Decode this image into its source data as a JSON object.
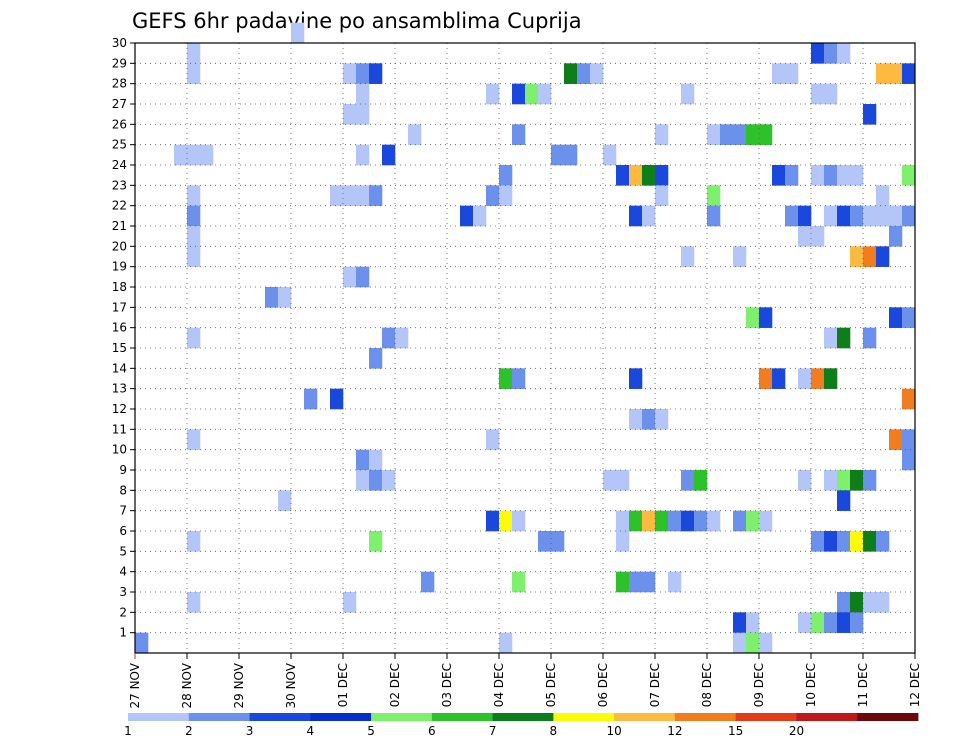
{
  "chart_data": {
    "type": "heatmap",
    "title": "GEFS 6hr padavine po ansamblima Cuprija",
    "x_ticks": [
      "27 NOV",
      "28 NOV",
      "29 NOV",
      "30 NOV",
      "01 DEC",
      "02 DEC",
      "03 DEC",
      "04 DEC",
      "05 DEC",
      "06 DEC",
      "07 DEC",
      "08 DEC",
      "09 DEC",
      "10 DEC",
      "11 DEC",
      "12 DEC"
    ],
    "y_ticks": [
      1,
      2,
      3,
      4,
      5,
      6,
      7,
      8,
      9,
      10,
      11,
      12,
      13,
      14,
      15,
      16,
      17,
      18,
      19,
      20,
      21,
      22,
      23,
      24,
      25,
      26,
      27,
      28,
      29,
      30
    ],
    "xlim_steps": [
      0,
      60
    ],
    "steps_per_day": 4,
    "ylim": [
      0,
      30
    ],
    "grid": true,
    "colorbar": {
      "labels": [
        "1",
        "2",
        "3",
        "4",
        "5",
        "6",
        "7",
        "8",
        "10",
        "12",
        "15",
        "20"
      ],
      "colors": [
        "#b3c6f7",
        "#6b91ec",
        "#1a48dc",
        "#0530c8",
        "#7ef06e",
        "#2ec22a",
        "#0e7e1a",
        "#fcfc0a",
        "#fcba40",
        "#f27d1e",
        "#e33c18",
        "#c01818",
        "#6e0808"
      ]
    },
    "bins": [
      "#b3c6f7",
      "#6b91ec",
      "#1a48dc",
      "#7ef06e",
      "#2ec22a",
      "#0e7e1a",
      "#fcfc0a",
      "#fcba40",
      "#f27d1e",
      "#e33c18",
      "#6e0808"
    ],
    "cells": [
      [
        0,
        0,
        2,
        30,
        1
      ],
      [
        12,
        30,
        1
      ],
      [
        4,
        29,
        1
      ],
      [
        52,
        29,
        3
      ],
      [
        53,
        29,
        2
      ],
      [
        54,
        29,
        1
      ],
      [
        4,
        28,
        1
      ],
      [
        16,
        28,
        1
      ],
      [
        17,
        28,
        2
      ],
      [
        18,
        28,
        3
      ],
      [
        33,
        28,
        6
      ],
      [
        34,
        28,
        2
      ],
      [
        35,
        28,
        1
      ],
      [
        49,
        28,
        1
      ],
      [
        50,
        28,
        1
      ],
      [
        57,
        28,
        8
      ],
      [
        58,
        28,
        8
      ],
      [
        59,
        28,
        3
      ],
      [
        17,
        27,
        1
      ],
      [
        27,
        27,
        1
      ],
      [
        29,
        27,
        3
      ],
      [
        30,
        27,
        4
      ],
      [
        31,
        27,
        1
      ],
      [
        42,
        27,
        1
      ],
      [
        52,
        27,
        1
      ],
      [
        53,
        27,
        1
      ],
      [
        16,
        26,
        1
      ],
      [
        17,
        26,
        1
      ],
      [
        56,
        26,
        3
      ],
      [
        21,
        25,
        1
      ],
      [
        29,
        25,
        2
      ],
      [
        40,
        25,
        1
      ],
      [
        44,
        25,
        1
      ],
      [
        45,
        25,
        2
      ],
      [
        46,
        25,
        2
      ],
      [
        47,
        25,
        5
      ],
      [
        48,
        25,
        5
      ],
      [
        3,
        24,
        1
      ],
      [
        4,
        24,
        1
      ],
      [
        5,
        24,
        1
      ],
      [
        17,
        24,
        1
      ],
      [
        19,
        24,
        3
      ],
      [
        32,
        24,
        2
      ],
      [
        33,
        24,
        2
      ],
      [
        36,
        24,
        1
      ],
      [
        28,
        23,
        2
      ],
      [
        37,
        23,
        3
      ],
      [
        38,
        23,
        8
      ],
      [
        39,
        23,
        6
      ],
      [
        40,
        23,
        3
      ],
      [
        49,
        23,
        3
      ],
      [
        50,
        23,
        2
      ],
      [
        52,
        23,
        1
      ],
      [
        53,
        23,
        2
      ],
      [
        54,
        23,
        1
      ],
      [
        55,
        23,
        1
      ],
      [
        59,
        23,
        4
      ],
      [
        4,
        22,
        1
      ],
      [
        15,
        22,
        1
      ],
      [
        16,
        22,
        1
      ],
      [
        17,
        22,
        1
      ],
      [
        18,
        22,
        2
      ],
      [
        27,
        22,
        2
      ],
      [
        28,
        22,
        1
      ],
      [
        40,
        22,
        1
      ],
      [
        44,
        22,
        4
      ],
      [
        57,
        22,
        1
      ],
      [
        4,
        21,
        2
      ],
      [
        25,
        21,
        3
      ],
      [
        26,
        21,
        1
      ],
      [
        38,
        21,
        3
      ],
      [
        39,
        21,
        1
      ],
      [
        44,
        21,
        2
      ],
      [
        50,
        21,
        2
      ],
      [
        51,
        21,
        3
      ],
      [
        53,
        21,
        1
      ],
      [
        54,
        21,
        3
      ],
      [
        55,
        21,
        2
      ],
      [
        56,
        21,
        1
      ],
      [
        57,
        21,
        1
      ],
      [
        58,
        21,
        1
      ],
      [
        59,
        21,
        2
      ],
      [
        4,
        20,
        1
      ],
      [
        51,
        20,
        1
      ],
      [
        52,
        20,
        1
      ],
      [
        58,
        20,
        2
      ],
      [
        4,
        19,
        1
      ],
      [
        42,
        19,
        1
      ],
      [
        46,
        19,
        1
      ],
      [
        55,
        19,
        8
      ],
      [
        56,
        19,
        9
      ],
      [
        57,
        19,
        3
      ],
      [
        16,
        18,
        1
      ],
      [
        17,
        18,
        2
      ],
      [
        10,
        17,
        2
      ],
      [
        11,
        17,
        1
      ],
      [
        47,
        16,
        4
      ],
      [
        48,
        16,
        3
      ],
      [
        58,
        16,
        3
      ],
      [
        59,
        16,
        2
      ],
      [
        4,
        15,
        1
      ],
      [
        19,
        15,
        2
      ],
      [
        20,
        15,
        1
      ],
      [
        53,
        15,
        1
      ],
      [
        54,
        15,
        6
      ],
      [
        56,
        15,
        2
      ],
      [
        18,
        14,
        2
      ],
      [
        28,
        13,
        5
      ],
      [
        29,
        13,
        2
      ],
      [
        38,
        13,
        3
      ],
      [
        48,
        13,
        9
      ],
      [
        49,
        13,
        3
      ],
      [
        51,
        13,
        1
      ],
      [
        52,
        13,
        9
      ],
      [
        53,
        13,
        6
      ],
      [
        13,
        12,
        2
      ],
      [
        15,
        12,
        3
      ],
      [
        59,
        12,
        9
      ],
      [
        38,
        11,
        1
      ],
      [
        39,
        11,
        2
      ],
      [
        40,
        11,
        1
      ],
      [
        4,
        10,
        1
      ],
      [
        27,
        10,
        1
      ],
      [
        58,
        10,
        9
      ],
      [
        59,
        10,
        2
      ],
      [
        17,
        9,
        2
      ],
      [
        18,
        9,
        1
      ],
      [
        59,
        9,
        2
      ],
      [
        17,
        8,
        1
      ],
      [
        18,
        8,
        2
      ],
      [
        19,
        8,
        1
      ],
      [
        36,
        8,
        1
      ],
      [
        37,
        8,
        1
      ],
      [
        42,
        8,
        2
      ],
      [
        43,
        8,
        5
      ],
      [
        51,
        8,
        1
      ],
      [
        53,
        8,
        1
      ],
      [
        54,
        8,
        4
      ],
      [
        55,
        8,
        6
      ],
      [
        56,
        8,
        2
      ],
      [
        11,
        7,
        1
      ],
      [
        54,
        7,
        3
      ],
      [
        27,
        6,
        3
      ],
      [
        28,
        6,
        7
      ],
      [
        29,
        6,
        1
      ],
      [
        37,
        6,
        1
      ],
      [
        38,
        6,
        5
      ],
      [
        39,
        6,
        8
      ],
      [
        40,
        6,
        5
      ],
      [
        41,
        6,
        2
      ],
      [
        42,
        6,
        3
      ],
      [
        43,
        6,
        2
      ],
      [
        44,
        6,
        1
      ],
      [
        46,
        6,
        2
      ],
      [
        47,
        6,
        4
      ],
      [
        48,
        6,
        1
      ],
      [
        4,
        5,
        1
      ],
      [
        18,
        5,
        4
      ],
      [
        31,
        5,
        2
      ],
      [
        32,
        5,
        2
      ],
      [
        37,
        5,
        1
      ],
      [
        52,
        5,
        2
      ],
      [
        53,
        5,
        3
      ],
      [
        54,
        5,
        2
      ],
      [
        55,
        5,
        7
      ],
      [
        56,
        5,
        6
      ],
      [
        57,
        5,
        2
      ],
      [
        22,
        3,
        2
      ],
      [
        29,
        3,
        4
      ],
      [
        37,
        3,
        5
      ],
      [
        38,
        3,
        2
      ],
      [
        39,
        3,
        2
      ],
      [
        41,
        3,
        1
      ],
      [
        4,
        2,
        1
      ],
      [
        16,
        2,
        1
      ],
      [
        54,
        2,
        2
      ],
      [
        55,
        2,
        6
      ],
      [
        56,
        2,
        1
      ],
      [
        57,
        2,
        1
      ],
      [
        46,
        1,
        3
      ],
      [
        47,
        1,
        1
      ],
      [
        51,
        1,
        1
      ],
      [
        52,
        1,
        4
      ],
      [
        53,
        1,
        2
      ],
      [
        54,
        1,
        3
      ],
      [
        55,
        1,
        2
      ],
      [
        28,
        0,
        1
      ],
      [
        46,
        0,
        1
      ],
      [
        47,
        0,
        4
      ],
      [
        48,
        0,
        1
      ]
    ]
  }
}
